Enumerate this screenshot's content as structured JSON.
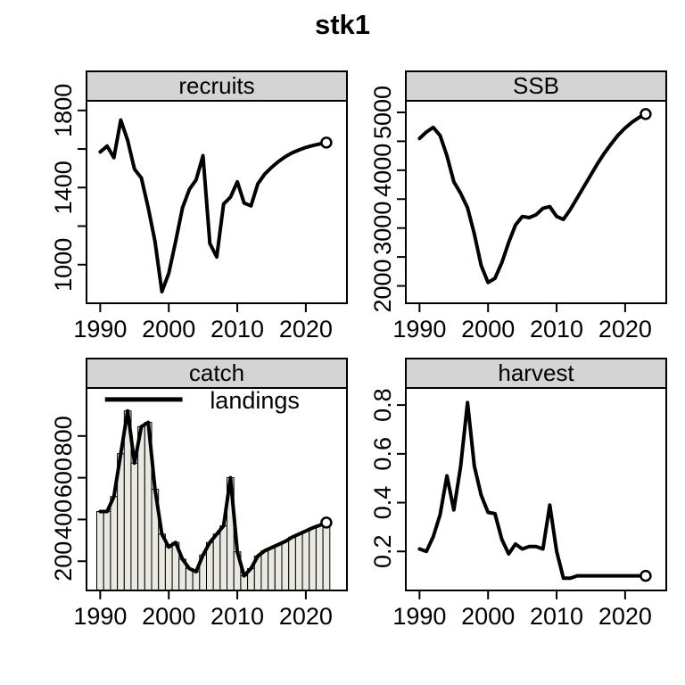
{
  "page": {
    "title": "stk1"
  },
  "colors": {
    "background": "#ffffff",
    "line": "#000000",
    "axis": "#000000",
    "text": "#000000",
    "strip_bg": "#d4d4d4",
    "bar_fill": "#e9e9e2",
    "bar_stroke": "#000000",
    "marker_fill": "#ffffff"
  },
  "chart_data": {
    "type": "multi-panel-line",
    "title": "stk1",
    "layout": "2x2",
    "grid": false,
    "years": [
      1990,
      1991,
      1992,
      1993,
      1994,
      1995,
      1996,
      1997,
      1998,
      1999,
      2000,
      2001,
      2002,
      2003,
      2004,
      2005,
      2006,
      2007,
      2008,
      2009,
      2010,
      2011,
      2012,
      2013,
      2014,
      2015,
      2016,
      2017,
      2018,
      2019,
      2020,
      2021,
      2022,
      2023
    ],
    "xlim": [
      1988,
      2026
    ],
    "xticks": [
      {
        "v": 1990,
        "label": "1990"
      },
      {
        "v": 2000,
        "label": "2000"
      },
      {
        "v": 2010,
        "label": "2010"
      },
      {
        "v": 2020,
        "label": "2020"
      }
    ],
    "panels": [
      {
        "panel": "recruits",
        "strip_label": "recruits",
        "type": "line",
        "end_marker": "open-circle",
        "ylim": [
          800,
          1850
        ],
        "yticks": [
          {
            "v": 1000,
            "label": "1000"
          },
          {
            "v": 1200,
            "label": ""
          },
          {
            "v": 1400,
            "label": "1400"
          },
          {
            "v": 1600,
            "label": ""
          },
          {
            "v": 1800,
            "label": "1800"
          }
        ],
        "values": [
          1585,
          1615,
          1555,
          1750,
          1645,
          1495,
          1450,
          1295,
          1120,
          860,
          955,
          1120,
          1295,
          1390,
          1440,
          1565,
          1110,
          1040,
          1315,
          1350,
          1430,
          1320,
          1305,
          1420,
          1470,
          1505,
          1535,
          1560,
          1580,
          1595,
          1608,
          1618,
          1626,
          1633
        ]
      },
      {
        "panel": "ssb",
        "strip_label": "SSB",
        "type": "line",
        "end_marker": "open-circle",
        "ylim": [
          1700,
          5200
        ],
        "yticks": [
          {
            "v": 2000,
            "label": "2000"
          },
          {
            "v": 2500,
            "label": ""
          },
          {
            "v": 3000,
            "label": "3000"
          },
          {
            "v": 3500,
            "label": ""
          },
          {
            "v": 4000,
            "label": "4000"
          },
          {
            "v": 4500,
            "label": ""
          },
          {
            "v": 5000,
            "label": "5000"
          }
        ],
        "values": [
          4550,
          4660,
          4740,
          4600,
          4250,
          3800,
          3600,
          3350,
          2900,
          2350,
          2060,
          2130,
          2400,
          2750,
          3050,
          3200,
          3180,
          3230,
          3340,
          3370,
          3200,
          3150,
          3320,
          3520,
          3720,
          3920,
          4120,
          4300,
          4460,
          4610,
          4730,
          4830,
          4910,
          4970
        ]
      },
      {
        "panel": "catch",
        "strip_label": "catch",
        "type": "bar+line",
        "end_marker": "open-circle",
        "legend": {
          "label": "landings",
          "x1": 1990.7,
          "x2": 2002,
          "y": 975,
          "tx": 2006
        },
        "ylim": [
          60,
          1030
        ],
        "yticks": [
          {
            "v": 200,
            "label": "200"
          },
          {
            "v": 400,
            "label": "400"
          },
          {
            "v": 600,
            "label": "600"
          },
          {
            "v": 800,
            "label": "800"
          }
        ],
        "values": [
          438,
          438,
          510,
          715,
          920,
          670,
          845,
          865,
          545,
          330,
          268,
          290,
          210,
          165,
          150,
          230,
          290,
          330,
          370,
          600,
          245,
          130,
          165,
          225,
          250,
          265,
          280,
          295,
          315,
          330,
          345,
          360,
          372,
          385
        ]
      },
      {
        "panel": "harvest",
        "strip_label": "harvest",
        "type": "line",
        "end_marker": "open-circle",
        "ylim": [
          0.04,
          0.87
        ],
        "yticks": [
          {
            "v": 0.2,
            "label": "0.2"
          },
          {
            "v": 0.4,
            "label": "0.4"
          },
          {
            "v": 0.6,
            "label": "0.6"
          },
          {
            "v": 0.8,
            "label": "0.8"
          }
        ],
        "values": [
          0.21,
          0.2,
          0.26,
          0.35,
          0.51,
          0.37,
          0.55,
          0.81,
          0.55,
          0.43,
          0.36,
          0.355,
          0.25,
          0.19,
          0.23,
          0.21,
          0.22,
          0.22,
          0.21,
          0.39,
          0.2,
          0.09,
          0.09,
          0.1,
          0.1,
          0.1,
          0.1,
          0.1,
          0.1,
          0.1,
          0.1,
          0.1,
          0.1,
          0.1
        ]
      }
    ]
  }
}
